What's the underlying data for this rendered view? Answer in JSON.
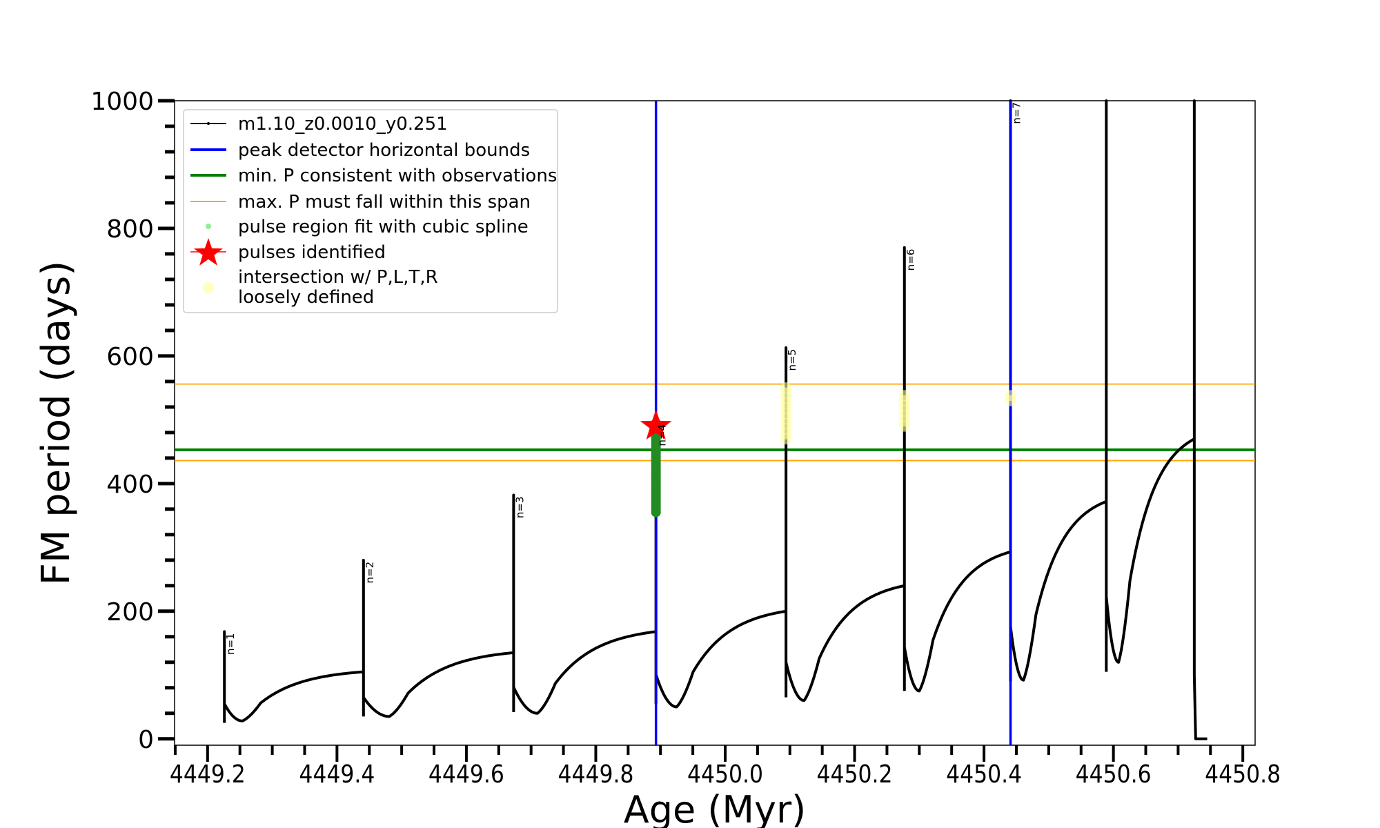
{
  "chart_data": {
    "type": "line",
    "xlabel": "Age (Myr)",
    "ylabel": "FM period (days)",
    "xlim": [
      4449.149,
      4450.819
    ],
    "ylim": [
      -10,
      1000
    ],
    "xticks": [
      "4449.2",
      "4449.4",
      "4449.6",
      "4449.8",
      "4450.0",
      "4450.2",
      "4450.4",
      "4450.6",
      "4450.8"
    ],
    "xtick_values": [
      4449.2,
      4449.4,
      4449.6,
      4449.8,
      4450.0,
      4450.2,
      4450.4,
      4450.6,
      4450.8
    ],
    "yticks": [
      "0",
      "200",
      "400",
      "600",
      "800",
      "1000"
    ],
    "ytick_values": [
      0,
      200,
      400,
      600,
      800,
      1000
    ],
    "grid": false,
    "legend_position": "top-left",
    "legend": [
      {
        "label": "m1.10_z0.0010_y0.251",
        "color": "#000000",
        "kind": "line-marker"
      },
      {
        "label": "peak detector horizontal bounds",
        "color": "#0000ff",
        "kind": "line"
      },
      {
        "label": "min. P consistent with observations",
        "color": "#008000",
        "kind": "line"
      },
      {
        "label": "max. P must fall within this span",
        "color": "#ffa500",
        "kind": "thinline"
      },
      {
        "label": "pulse region fit with cubic spline",
        "color": "#90ee90",
        "kind": "dot"
      },
      {
        "label": "pulses identified",
        "color": "#ff0000",
        "kind": "star"
      },
      {
        "label": "intersection w/ P,L,T,R",
        "label2": "loosely defined",
        "color": "#ffffc0",
        "kind": "bigdot"
      }
    ],
    "vlines_blue": [
      4449.893,
      4450.441
    ],
    "hline_green": 453,
    "hlines_orange": [
      556,
      436
    ],
    "pulses": [
      {
        "label": "n=1",
        "age": 4449.226,
        "peak": 168,
        "dip": 25,
        "min_age": 4449.254,
        "min": 28,
        "pre": 70
      },
      {
        "label": "n=2",
        "age": 4449.441,
        "peak": 280,
        "dip": 35,
        "min_age": 4449.481,
        "min": 35,
        "pre": 105
      },
      {
        "label": "n=3",
        "age": 4449.673,
        "peak": 382,
        "dip": 42,
        "min_age": 4449.71,
        "min": 40,
        "pre": 135
      },
      {
        "label": "n=4",
        "age": 4449.893,
        "peak": 495,
        "dip": 55,
        "min_age": 4449.925,
        "min": 50,
        "pre": 168
      },
      {
        "label": "n=5",
        "age": 4450.094,
        "peak": 613,
        "dip": 65,
        "min_age": 4450.122,
        "min": 60,
        "pre": 200
      },
      {
        "label": "n=6",
        "age": 4450.277,
        "peak": 770,
        "dip": 75,
        "min_age": 4450.3,
        "min": 75,
        "pre": 240
      },
      {
        "label": "n=7",
        "age": 4450.441,
        "peak": 1000,
        "dip": 90,
        "min_age": 4450.461,
        "min": 92,
        "pre": 293
      },
      {
        "label": "",
        "age": 4450.589,
        "peak": 1000,
        "dip": 105,
        "min_age": 4450.608,
        "min": 120,
        "pre": 372
      },
      {
        "label": "",
        "age": 4450.725,
        "peak": 1000,
        "dip": 100,
        "min_age": 4450.73,
        "min": 0,
        "pre": 470
      }
    ],
    "end_age": 4450.745,
    "spline_region": {
      "age": 4449.893,
      "from": 355,
      "to": 495
    },
    "pulse_identified": {
      "age": 4449.893,
      "value": 490
    },
    "loose_intersections": [
      {
        "age": 4450.094,
        "from": 470,
        "to": 550
      },
      {
        "age": 4450.277,
        "from": 490,
        "to": 540
      },
      {
        "age": 4450.441,
        "from": 530,
        "to": 540
      }
    ]
  }
}
